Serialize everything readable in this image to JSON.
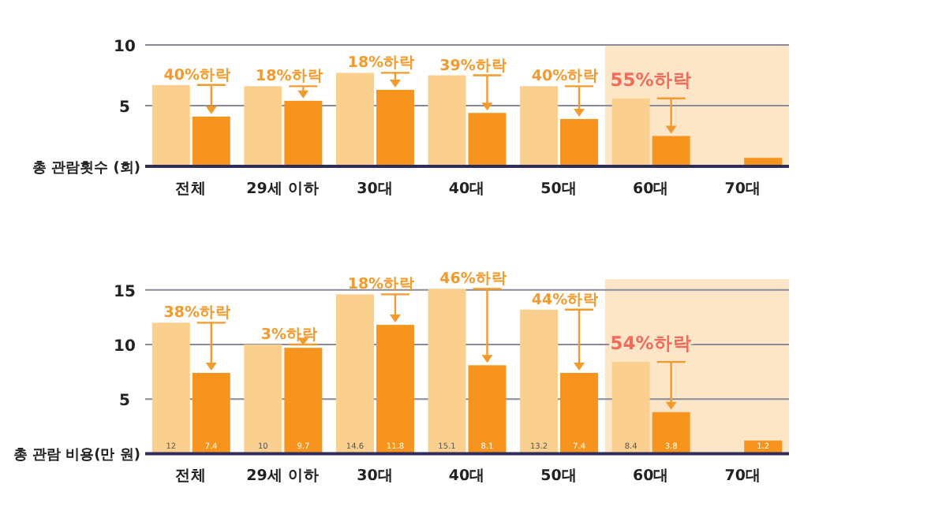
{
  "chart_data": [
    {
      "type": "bar",
      "ylabel": "총 관람횟수 (회)",
      "categories": [
        "전체",
        "29세 이하",
        "30대",
        "40대",
        "50대",
        "60대",
        "70대"
      ],
      "series": [
        {
          "color": "#fbcf8e",
          "values": [
            6.7,
            6.6,
            7.7,
            7.5,
            6.6,
            5.6,
            null
          ]
        },
        {
          "color": "#f7941d",
          "values": [
            4.1,
            5.4,
            6.3,
            4.4,
            3.9,
            2.5,
            0.7
          ]
        }
      ],
      "ylim": [
        0,
        10
      ],
      "yticks": [
        5,
        10
      ],
      "grid": "y",
      "bands": [
        {
          "axis": "x",
          "from": "60대",
          "to": "70대",
          "color": "#fde6c8"
        }
      ],
      "annotations": [
        {
          "text": "40%하락",
          "x": "전체",
          "y": 6.7
        },
        {
          "text": "18%하락",
          "x": "29세 이하",
          "y": 6.6
        },
        {
          "text": "18%하락",
          "x": "30대",
          "y": 7.7
        },
        {
          "text": "39%하락",
          "x": "40대",
          "y": 7.5
        },
        {
          "text": "40%하락",
          "x": "50대",
          "y": 6.6
        },
        {
          "text": "55%하락",
          "x": "60대",
          "y": 5.6
        }
      ]
    },
    {
      "type": "bar",
      "ylabel": "총 관람 비용(만 원)",
      "categories": [
        "전체",
        "29세 이하",
        "30대",
        "40대",
        "50대",
        "60대",
        "70대"
      ],
      "series": [
        {
          "color": "#fbcf8e",
          "values": [
            12,
            10,
            14.6,
            15.1,
            13.2,
            8.4,
            null
          ]
        },
        {
          "color": "#f7941d",
          "values": [
            7.4,
            9.7,
            11.8,
            8.1,
            7.4,
            3.8,
            1.2
          ]
        }
      ],
      "ylim": [
        0,
        16
      ],
      "yticks": [
        5,
        10,
        15
      ],
      "grid": "y",
      "data_labels": true,
      "bands": [
        {
          "axis": "x",
          "from": "60대",
          "to": "70대",
          "color": "#fde6c8"
        }
      ],
      "annotations": [
        {
          "text": "38%하락",
          "x": "전체",
          "y": 12
        },
        {
          "text": "3%하락",
          "x": "29세 이하",
          "y": 10
        },
        {
          "text": "18%하락",
          "x": "30대",
          "y": 14.6
        },
        {
          "text": "46%하락",
          "x": "40대",
          "y": 15.1
        },
        {
          "text": "44%하락",
          "x": "50대",
          "y": 13.2
        },
        {
          "text": "54%하락",
          "x": "60대",
          "y": 8.4
        }
      ]
    }
  ]
}
